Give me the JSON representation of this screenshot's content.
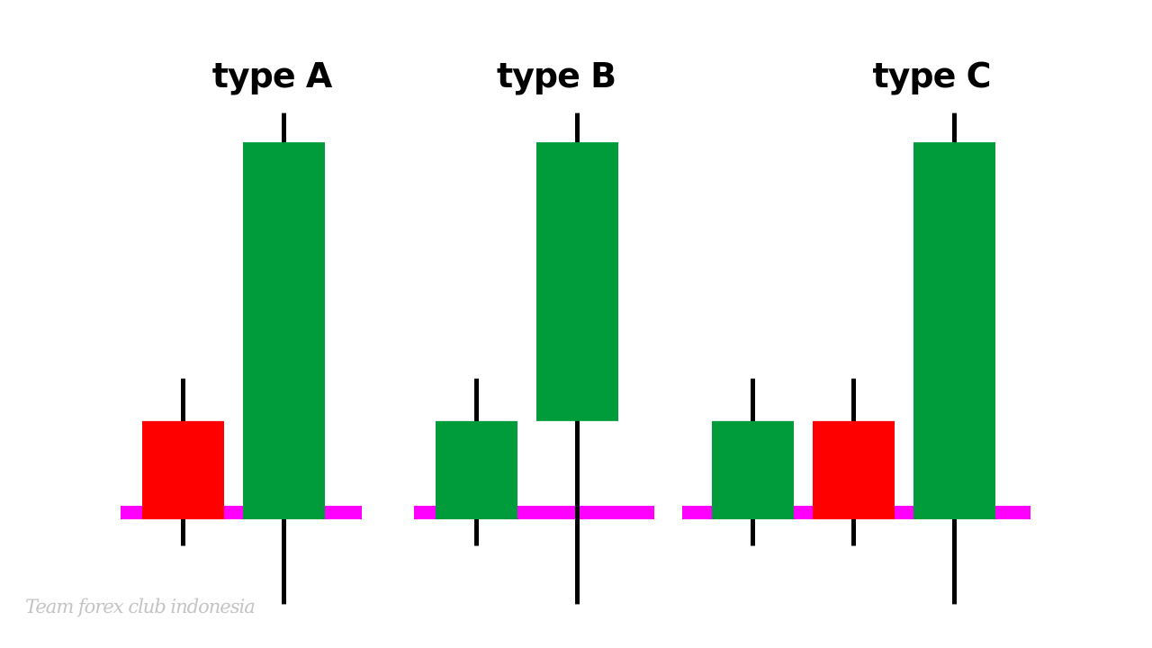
{
  "colors": {
    "bullish": "#009b3a",
    "bearish": "#ff0000",
    "wick": "#000000",
    "level_line": "#ff00ff"
  },
  "patterns": [
    {
      "title": "type A",
      "candles": [
        {
          "direction": "bearish",
          "open": 37,
          "close": 0,
          "high": 53,
          "low": -10
        },
        {
          "direction": "bullish",
          "open": 0,
          "close": 142,
          "high": 153,
          "low": -32
        }
      ]
    },
    {
      "title": "type B",
      "candles": [
        {
          "direction": "bullish",
          "open": 0,
          "close": 37,
          "high": 53,
          "low": -10
        },
        {
          "direction": "bullish",
          "open": 37,
          "close": 142,
          "high": 153,
          "low": -32
        }
      ]
    },
    {
      "title": "type C",
      "candles": [
        {
          "direction": "bullish",
          "open": 0,
          "close": 37,
          "high": 53,
          "low": -10
        },
        {
          "direction": "bearish",
          "open": 37,
          "close": 0,
          "high": 53,
          "low": -10
        },
        {
          "direction": "bullish",
          "open": 0,
          "close": 142,
          "high": 153,
          "low": -32
        }
      ]
    }
  ],
  "watermark": "Team forex club indonesia"
}
